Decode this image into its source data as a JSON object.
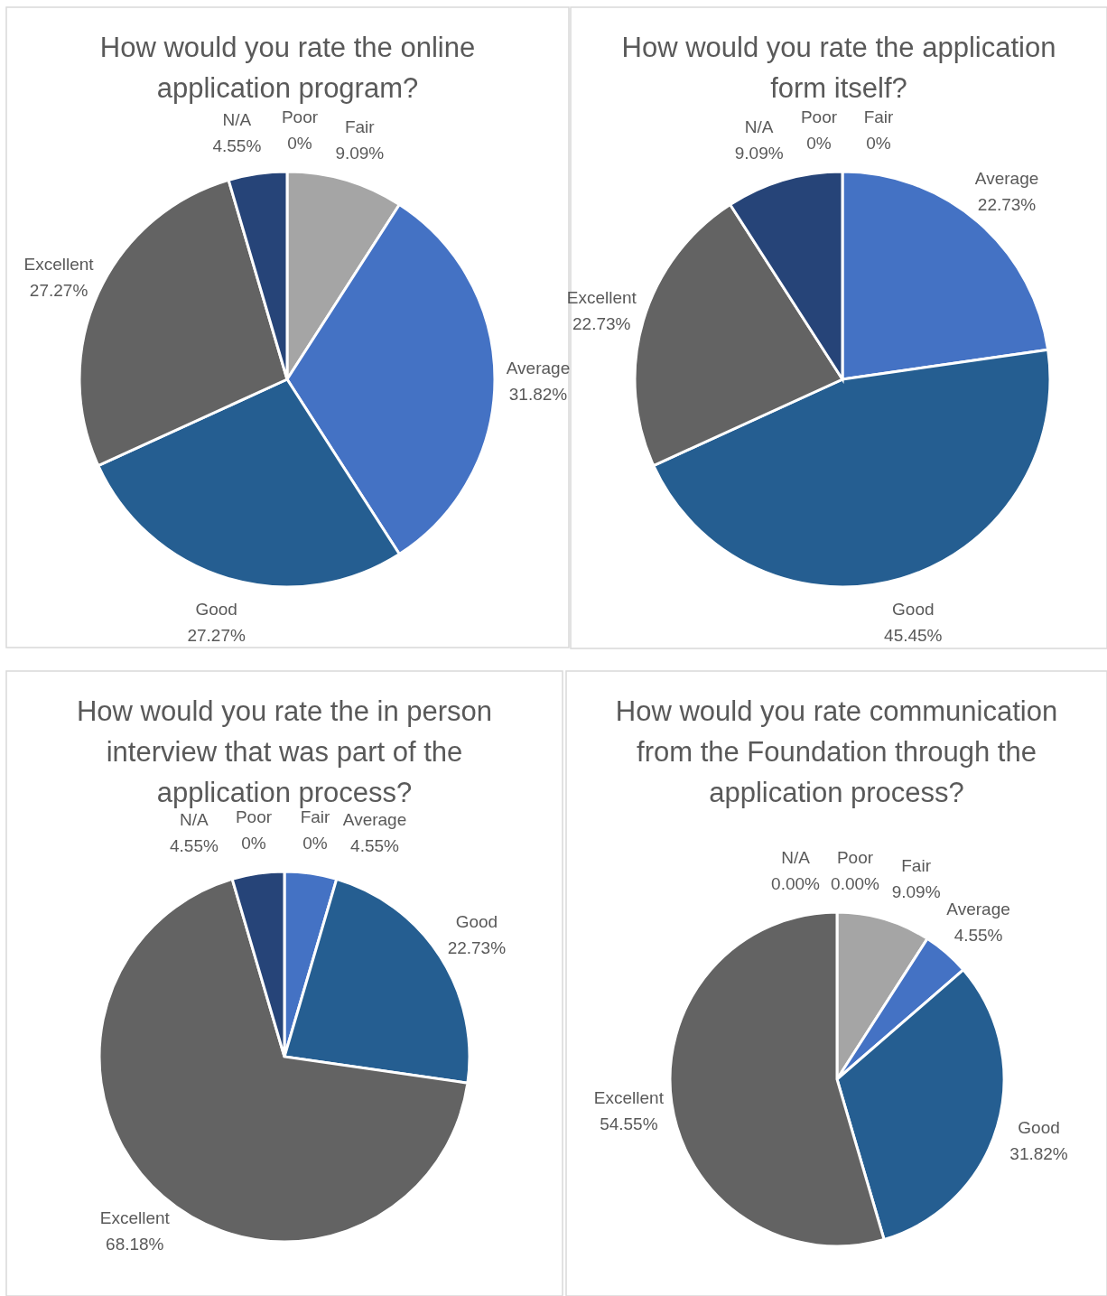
{
  "chart_data": [
    {
      "type": "pie",
      "title": "How would you rate the online application program?",
      "categories": [
        "Poor",
        "Fair",
        "Average",
        "Good",
        "Excellent",
        "N/A"
      ],
      "values": [
        0,
        9.09,
        31.82,
        27.27,
        27.27,
        4.55
      ],
      "colors": [
        "#9dc3e6",
        "#a5a5a5",
        "#4472c4",
        "#255e91",
        "#636363",
        "#264478"
      ],
      "value_labels": [
        "0%",
        "9.09%",
        "31.82%",
        "27.27%",
        "27.27%",
        "4.55%"
      ]
    },
    {
      "type": "pie",
      "title": "How would you rate the application form itself?",
      "categories": [
        "Poor",
        "Fair",
        "Average",
        "Good",
        "Excellent",
        "N/A"
      ],
      "values": [
        0,
        0,
        22.73,
        45.45,
        22.73,
        9.09
      ],
      "colors": [
        "#9dc3e6",
        "#a5a5a5",
        "#4472c4",
        "#255e91",
        "#636363",
        "#264478"
      ],
      "value_labels": [
        "0%",
        "0%",
        "22.73%",
        "45.45%",
        "22.73%",
        "9.09%"
      ]
    },
    {
      "type": "pie",
      "title": "How would you rate the in person interview that was part of the application process?",
      "categories": [
        "Poor",
        "Fair",
        "Average",
        "Good",
        "Excellent",
        "N/A"
      ],
      "values": [
        0,
        0,
        4.55,
        22.73,
        68.18,
        4.55
      ],
      "colors": [
        "#9dc3e6",
        "#a5a5a5",
        "#4472c4",
        "#255e91",
        "#636363",
        "#264478"
      ],
      "value_labels": [
        "0%",
        "0%",
        "4.55%",
        "22.73%",
        "68.18%",
        "4.55%"
      ]
    },
    {
      "type": "pie",
      "title": "How would you rate communication from the Foundation through the application process?",
      "categories": [
        "N/A",
        "Poor",
        "Fair",
        "Average",
        "Good",
        "Excellent"
      ],
      "values": [
        0,
        0,
        9.09,
        4.55,
        31.82,
        54.55
      ],
      "colors": [
        "#264478",
        "#9dc3e6",
        "#a5a5a5",
        "#4472c4",
        "#255e91",
        "#636363"
      ],
      "value_labels": [
        "0.00%",
        "0.00%",
        "9.09%",
        "4.55%",
        "31.82%",
        "54.55%"
      ]
    }
  ]
}
